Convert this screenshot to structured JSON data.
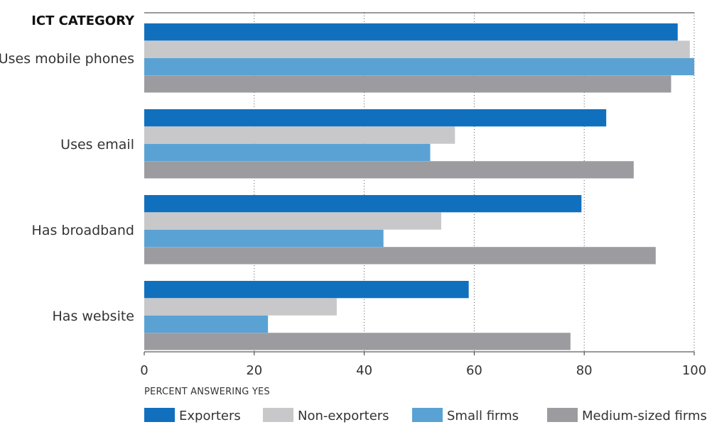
{
  "chart_data": {
    "type": "bar",
    "orientation": "horizontal",
    "category_header": "ICT CATEGORY",
    "categories": [
      "Uses mobile phones",
      "Uses email",
      "Has broadband",
      "Has website"
    ],
    "series": [
      {
        "name": "Exporters",
        "color": "#1170bd",
        "values": [
          97,
          84,
          79.5,
          59
        ]
      },
      {
        "name": "Non-exporters",
        "color": "#c8c8ca",
        "values": [
          99.2,
          56.5,
          54,
          35
        ]
      },
      {
        "name": "Small firms",
        "color": "#5aa2d4",
        "values": [
          100,
          52,
          43.5,
          22.5
        ]
      },
      {
        "name": "Medium-sized firms",
        "color": "#9c9ca0",
        "values": [
          95.8,
          89,
          93,
          77.5
        ]
      }
    ],
    "xlabel": "PERCENT ANSWERING YES",
    "xlim": [
      0,
      100
    ],
    "xticks": [
      0,
      20,
      40,
      60,
      80,
      100
    ],
    "grid": "vertical dotted",
    "legend_position": "bottom"
  }
}
